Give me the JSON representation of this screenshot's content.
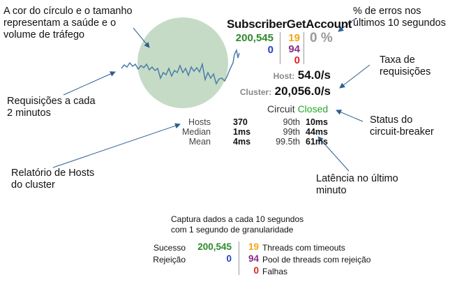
{
  "colors": {
    "success": "#2d8a2d",
    "timeout": "#f4a41a",
    "short_circuited": "#1f3fc4",
    "rejected": "#8a2c8a",
    "failure": "#e02020",
    "error_pct": "#999999",
    "circuit_closed": "#28a828",
    "circle_fill": "#c5dbc5",
    "sparkline": "#4a7dab",
    "arrow": "#2f5f8f"
  },
  "annotations": {
    "circle": "A cor do círculo e o tamanho\nrepresentam a saúde e o\nvolume de tráfego",
    "error_pct": "% de erros nos\núltimos 10 segundos",
    "request_rate": "Taxa de\nrequisições",
    "sparkline": "Requisições a cada\n2 minutos",
    "circuit": "Status do\ncircuit-breaker",
    "hosts": "Relatório de Hosts\ndo cluster",
    "latency": "Latência no último\nminuto"
  },
  "monitor": {
    "command_name": "SubscriberGetAccount",
    "success": "200,545",
    "short_circuited": "0",
    "timeout": "19",
    "rejected": "94",
    "failure": "0",
    "error_pct": "0 %",
    "host_label": "Host:",
    "host_rate": "54.0/s",
    "cluster_label": "Cluster:",
    "cluster_rate": "20,056.0/s",
    "circuit_label": "Circuit",
    "circuit_status": "Closed",
    "stats_left": [
      {
        "label": "Hosts",
        "value": "370"
      },
      {
        "label": "Median",
        "value": "1ms"
      },
      {
        "label": "Mean",
        "value": "4ms"
      }
    ],
    "stats_right": [
      {
        "label": "90th",
        "value": "10ms"
      },
      {
        "label": "99th",
        "value": "44ms"
      },
      {
        "label": "99.5th",
        "value": "61ms"
      }
    ]
  },
  "legend": {
    "caption": "Captura dados a cada 10 segundos\ncom 1 segundo de granularidade",
    "success_label": "Sucesso",
    "success_value": "200,545",
    "short_label": "Rejeição",
    "short_value": "0",
    "timeout_value": "19",
    "timeout_label": "Threads com timeouts",
    "rejected_value": "94",
    "rejected_label": "Pool de threads com rejeição",
    "failure_value": "0",
    "failure_label": "Falhas"
  }
}
